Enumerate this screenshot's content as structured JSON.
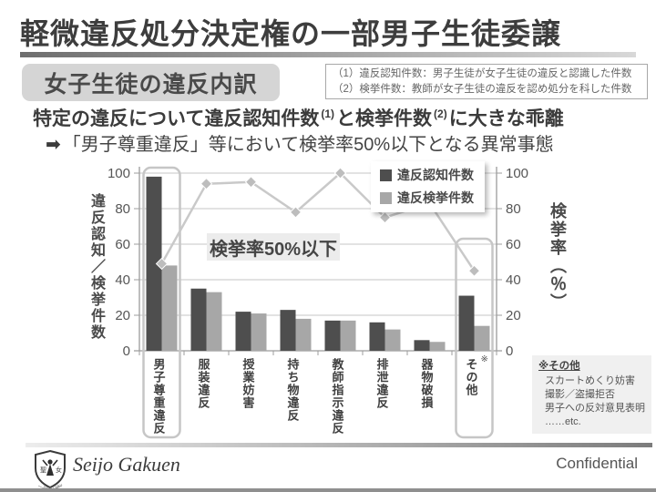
{
  "slide": {
    "title": "軽微違反処分決定権の一部男子生徒委譲",
    "section_label": "女子生徒の違反内訳",
    "definitions": {
      "line1": "（1）違反認知件数：男子生徒が女子生徒の違反と認識した件数",
      "line2": "（2）検挙件数：教師が女子生徒の違反を認め処分を科した件数"
    },
    "headline": {
      "seg1": "特定の違反について違反認知件数",
      "sup1": "(1)",
      "seg2": "と検挙件数",
      "sup2": "(2)",
      "seg3": "に大きな乖離"
    },
    "subline": {
      "arrow": "➡",
      "text": "「男子尊重違反」等において検挙率50%以下となる異常事態"
    },
    "footer": {
      "school_name": "Seijo Gakuen",
      "emblem_left": "聖",
      "emblem_right": "女",
      "confidential": "Confidential"
    }
  },
  "chart_data": {
    "type": "bar",
    "title": "女子生徒の違反内訳",
    "categories": [
      "男子尊重違反",
      "服装違反",
      "授業妨害",
      "持ち物違反",
      "教師指示違反",
      "排泄違反",
      "器物破損",
      "その他"
    ],
    "series": [
      {
        "name": "違反認知件数",
        "type": "bar",
        "color": "#4e4e4e",
        "values": [
          98,
          35,
          22,
          23,
          17,
          16,
          6,
          31
        ]
      },
      {
        "name": "違反検挙件数",
        "type": "bar",
        "color": "#a7a7a7",
        "values": [
          48,
          33,
          21,
          18,
          17,
          12,
          5,
          14
        ]
      },
      {
        "name": "検挙率",
        "type": "line",
        "color": "#c9c9c9",
        "axis": "right",
        "values": [
          49,
          94,
          95,
          78,
          100,
          75,
          83,
          45
        ]
      }
    ],
    "left_axis": {
      "title": "違反認知／検挙件数",
      "ticks": [
        0,
        20,
        40,
        60,
        80,
        100
      ],
      "range": [
        0,
        100
      ]
    },
    "right_axis": {
      "title": "検挙率（％）",
      "ticks": [
        0,
        20,
        40,
        60,
        80,
        100
      ],
      "range": [
        0,
        100
      ]
    },
    "grid": true,
    "legend_position": "top-right",
    "annotation": "検挙率50%以下",
    "highlighted_categories": [
      0,
      7
    ],
    "marked_category_index": 7,
    "mark": "※",
    "other_note": {
      "title": "※その他",
      "items": [
        "スカートめくり妨害",
        "撮影／盗撮拒否",
        "男子への反対意見表明",
        "……etc."
      ]
    }
  }
}
